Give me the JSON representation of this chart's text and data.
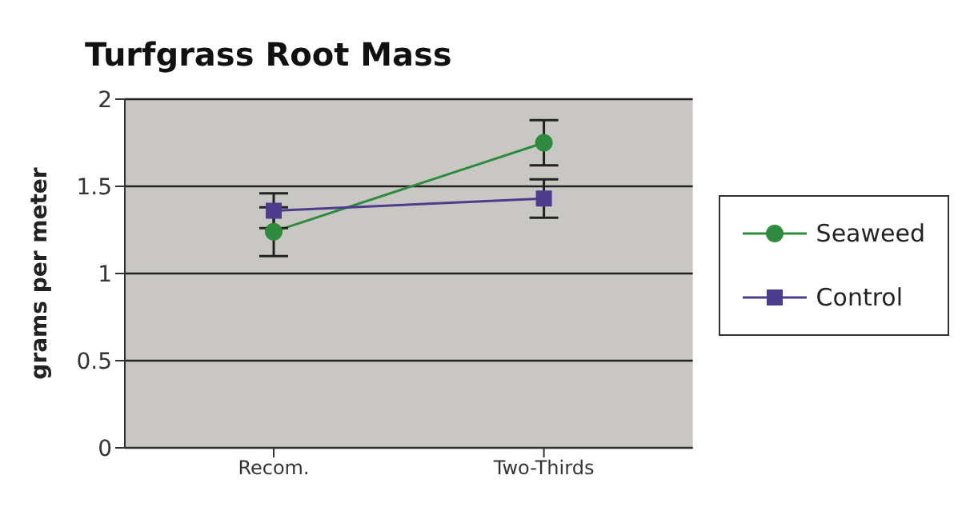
{
  "chart_data": {
    "type": "line",
    "title": "Turfgrass Root Mass",
    "ylabel": "grams per meter",
    "categories": [
      "Recom.",
      "Two-Thirds"
    ],
    "series": [
      {
        "name": "Seaweed",
        "color": "#2e8b3e",
        "marker": "circle",
        "values": [
          1.24,
          1.75
        ],
        "errors": [
          0.14,
          0.13
        ]
      },
      {
        "name": "Control",
        "color": "#4b3c8c",
        "marker": "square",
        "values": [
          1.36,
          1.43
        ],
        "errors": [
          0.1,
          0.11
        ]
      }
    ],
    "ylim": [
      0,
      2
    ],
    "yticks": [
      0,
      0.5,
      1,
      1.5,
      2
    ],
    "grid": "y",
    "legend": "right"
  }
}
